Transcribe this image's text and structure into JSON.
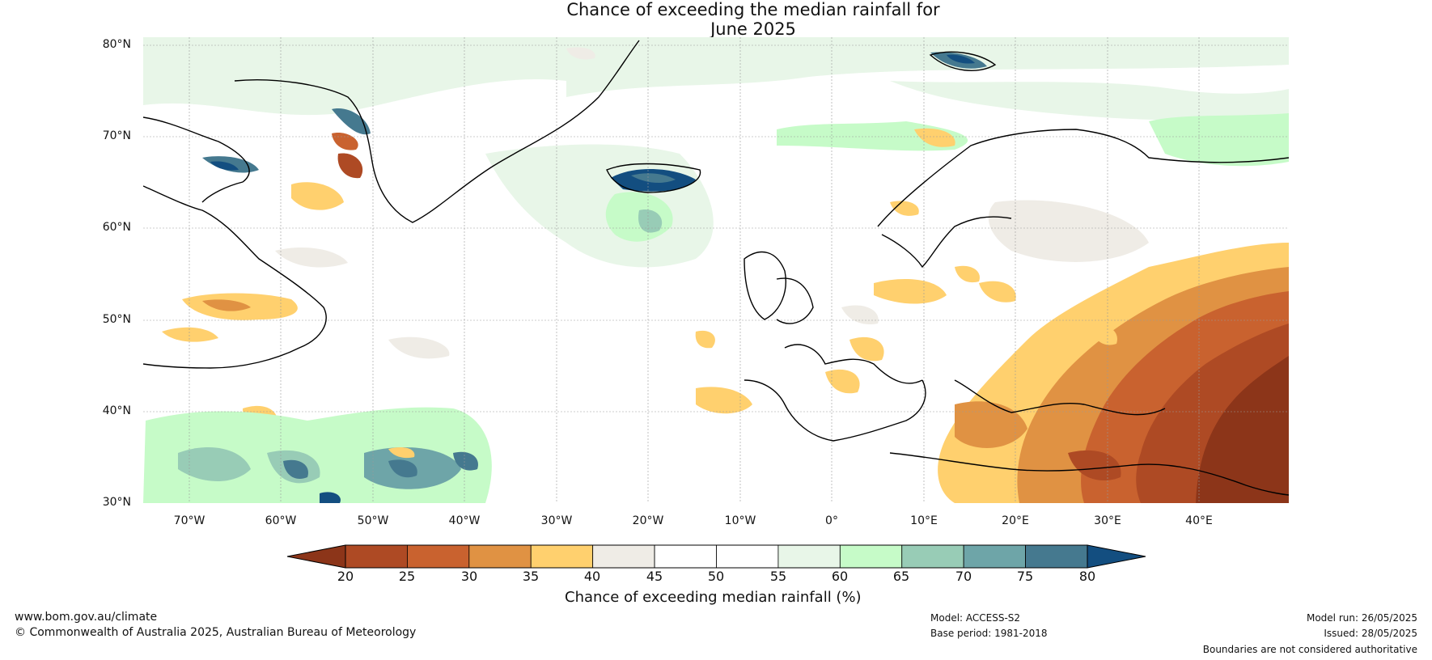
{
  "title_line1": "Chance of exceeding the median rainfall for",
  "title_line2": "June 2025",
  "lat_labels": [
    "80°N",
    "70°N",
    "60°N",
    "50°N",
    "40°N",
    "30°N"
  ],
  "lon_labels": [
    "70°W",
    "60°W",
    "50°W",
    "40°W",
    "30°W",
    "20°W",
    "10°W",
    "0°",
    "10°E",
    "20°E",
    "30°E",
    "40°E"
  ],
  "colorbar": {
    "ticks": [
      "20",
      "25",
      "30",
      "35",
      "40",
      "45",
      "50",
      "55",
      "60",
      "65",
      "70",
      "75",
      "80"
    ],
    "colors": [
      "#8c3519",
      "#ae4a24",
      "#c9622f",
      "#e09243",
      "#ffd06e",
      "#efece6",
      "#ffffff",
      "#ffffff",
      "#e8f6e8",
      "#c6fbc8",
      "#98ccb6",
      "#6ea5a8",
      "#45798f",
      "#134e80"
    ],
    "label": "Chance of exceeding median rainfall (%)"
  },
  "footer": {
    "website": "www.bom.gov.au/climate",
    "copyright": "© Commonwealth of Australia 2025, Australian Bureau of Meteorology",
    "model": "Model: ACCESS-S2",
    "base_period": "Base period: 1981-2018",
    "model_run": "Model run: 26/05/2025",
    "issued": "Issued: 28/05/2025",
    "disclaimer": "Boundaries are not considered authoritative"
  }
}
